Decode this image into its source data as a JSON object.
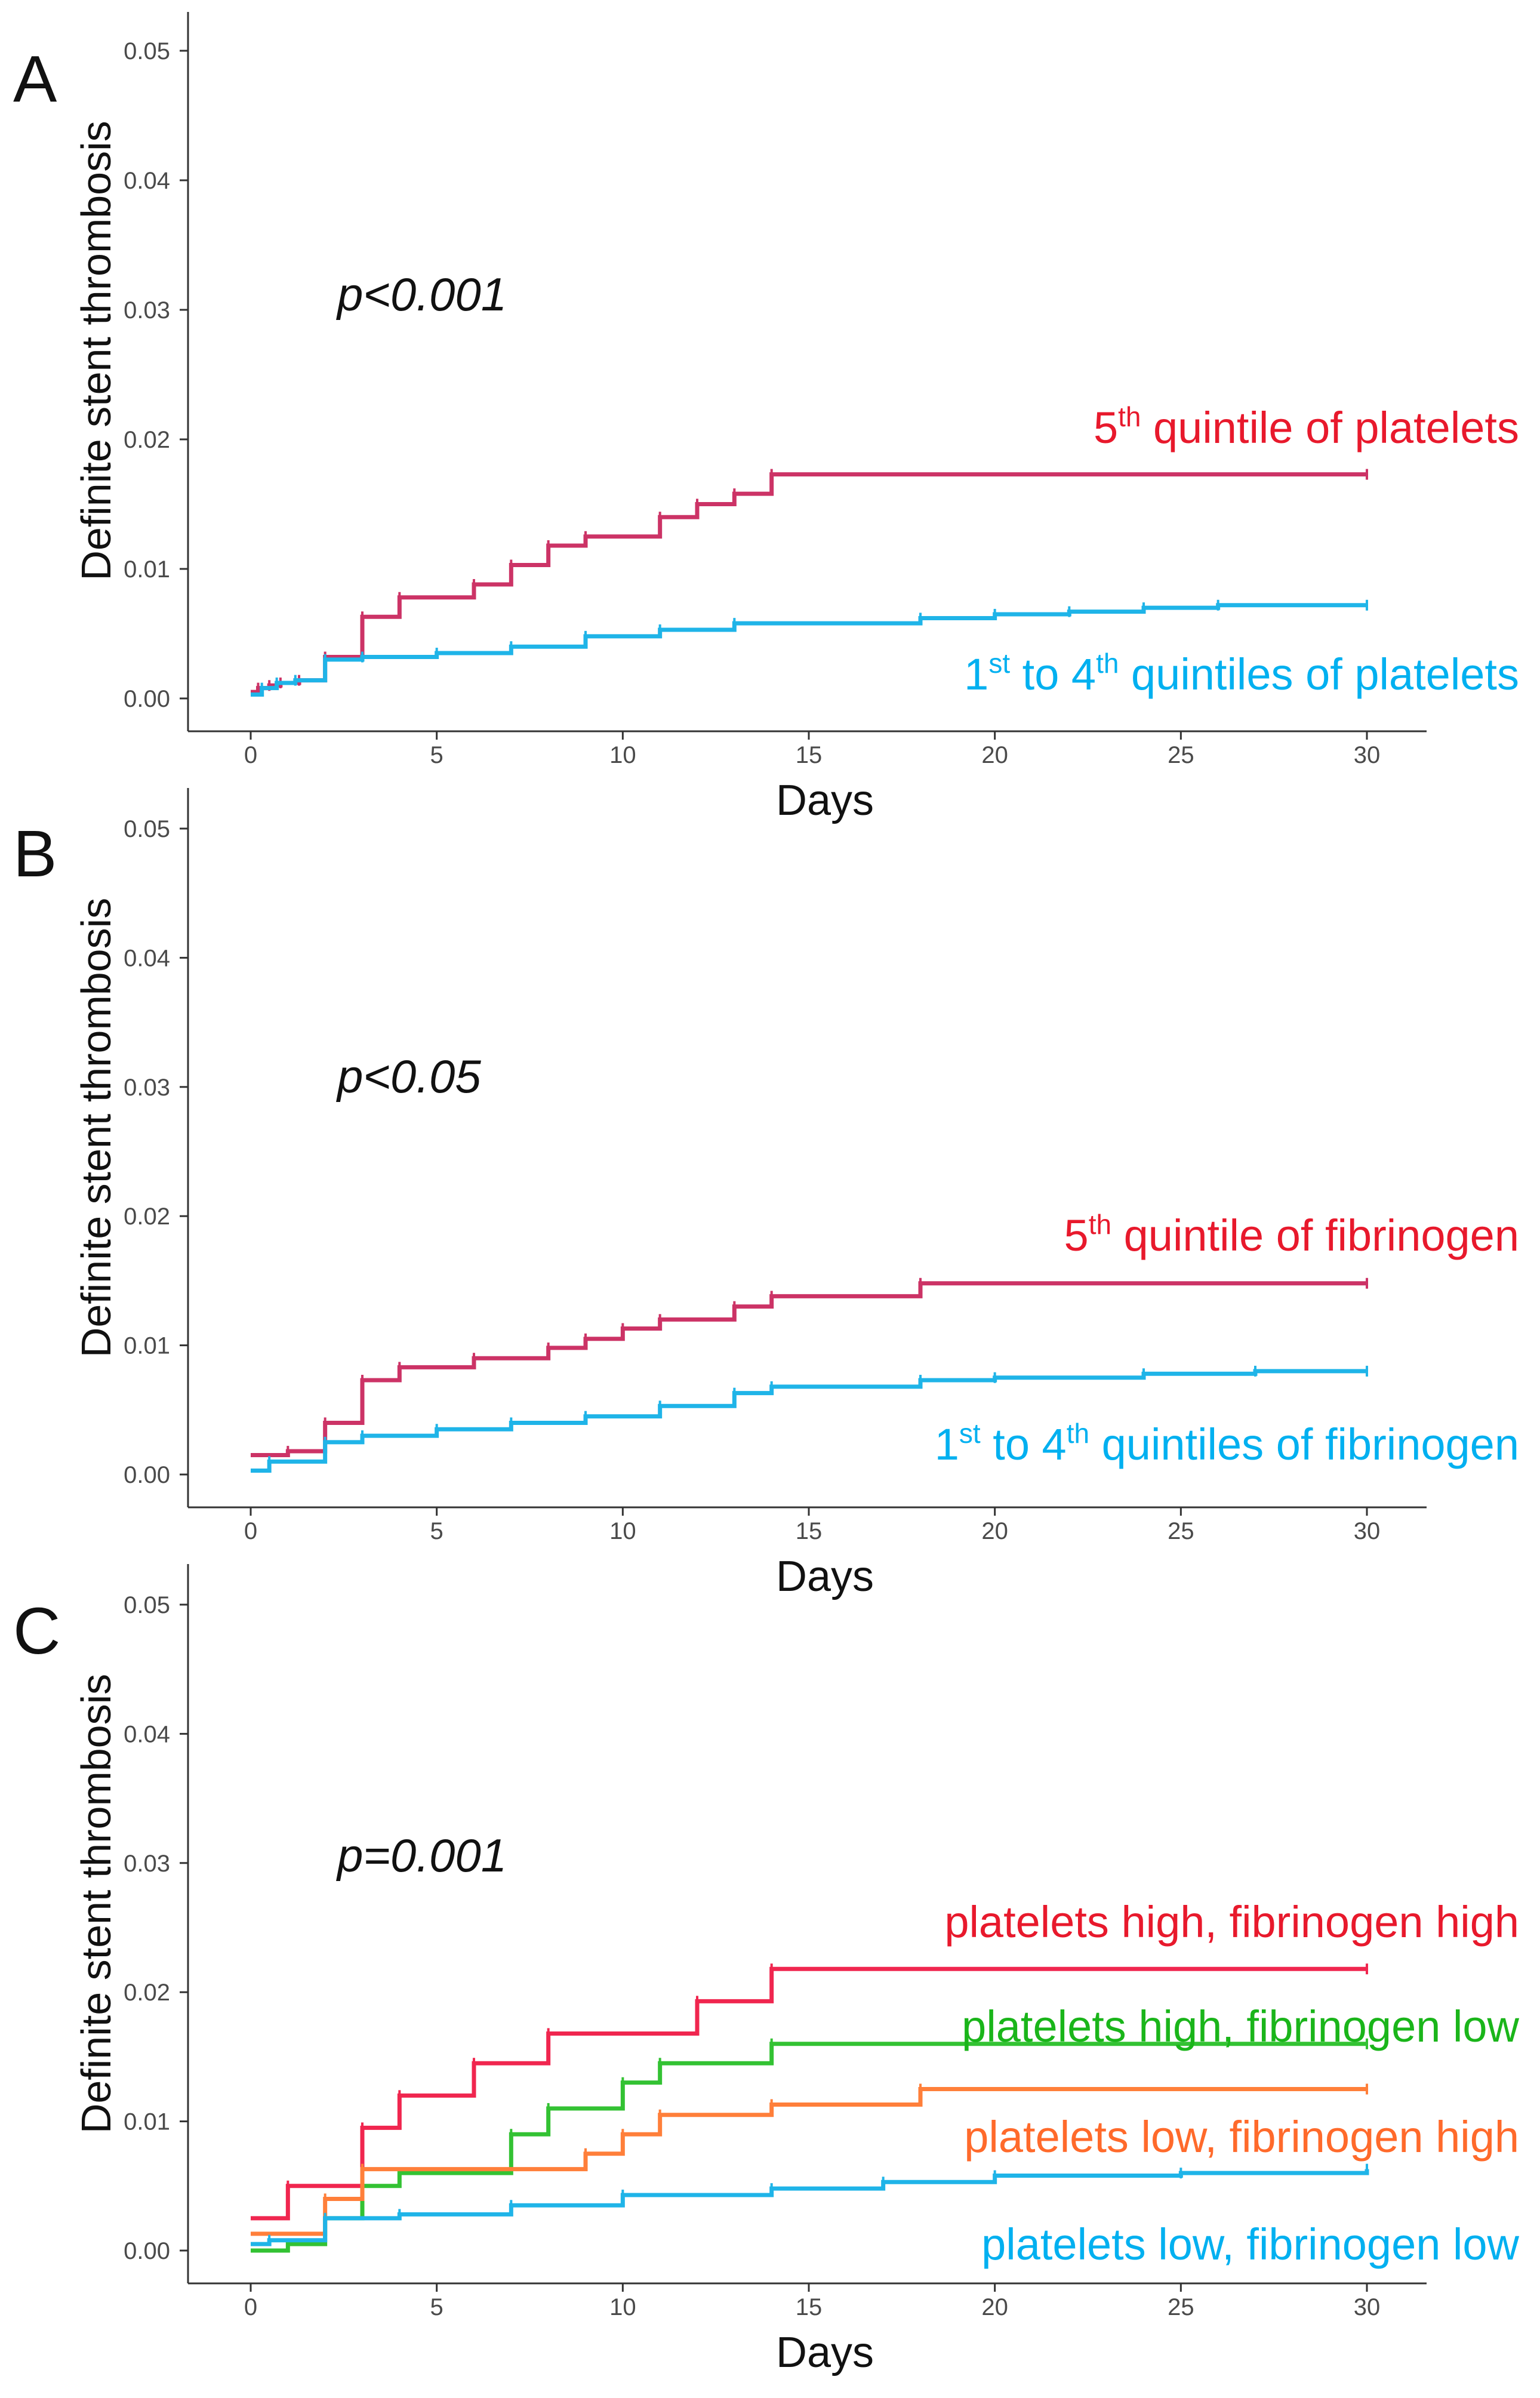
{
  "chart_data": [
    {
      "type": "line",
      "panel_label": "A",
      "p_value": "p<0.001",
      "xlabel": "Days",
      "ylabel": "Definite stent thrombosis",
      "xlim": [
        0,
        30
      ],
      "ylim": [
        0,
        0.05
      ],
      "xticks": [
        0,
        5,
        10,
        15,
        20,
        25,
        30
      ],
      "yticks": [
        "0.00",
        "0.01",
        "0.02",
        "0.03",
        "0.04",
        "0.05"
      ],
      "grid": false,
      "legend": "inline labels at right end of curves",
      "series": [
        {
          "name_parts": [
            "5",
            "th",
            " quintile of platelets"
          ],
          "color": "#cc3366",
          "label_color": "#e8192c",
          "steps": [
            [
              0,
              0.0005
            ],
            [
              0.2,
              0.0008
            ],
            [
              0.5,
              0.001
            ],
            [
              0.8,
              0.0012
            ],
            [
              1.3,
              0.0014
            ],
            [
              2,
              0.0032
            ],
            [
              3,
              0.0063
            ],
            [
              4,
              0.0078
            ],
            [
              6,
              0.0088
            ],
            [
              7,
              0.0103
            ],
            [
              8,
              0.0118
            ],
            [
              9,
              0.0125
            ],
            [
              11,
              0.014
            ],
            [
              12,
              0.015
            ],
            [
              13,
              0.0158
            ],
            [
              14,
              0.0173
            ],
            [
              30,
              0.0173
            ]
          ]
        },
        {
          "name_parts": [
            "1",
            "st",
            " to 4",
            "th",
            " quintiles of platelets"
          ],
          "color": "#1fb4e8",
          "label_color": "#00b0f0",
          "steps": [
            [
              0,
              0.0003
            ],
            [
              0.3,
              0.0008
            ],
            [
              0.7,
              0.0012
            ],
            [
              1.2,
              0.0014
            ],
            [
              2,
              0.003
            ],
            [
              3,
              0.0032
            ],
            [
              5,
              0.0035
            ],
            [
              7,
              0.004
            ],
            [
              9,
              0.0048
            ],
            [
              11,
              0.0053
            ],
            [
              13,
              0.0058
            ],
            [
              18,
              0.0062
            ],
            [
              20,
              0.0065
            ],
            [
              22,
              0.0067
            ],
            [
              24,
              0.007
            ],
            [
              26,
              0.0072
            ],
            [
              30,
              0.0072
            ]
          ]
        }
      ]
    },
    {
      "type": "line",
      "panel_label": "B",
      "p_value": "p<0.05",
      "xlabel": "Days",
      "ylabel": "Definite stent thrombosis",
      "xlim": [
        0,
        30
      ],
      "ylim": [
        0,
        0.05
      ],
      "xticks": [
        0,
        5,
        10,
        15,
        20,
        25,
        30
      ],
      "yticks": [
        "0.00",
        "0.01",
        "0.02",
        "0.03",
        "0.04",
        "0.05"
      ],
      "grid": false,
      "legend": "inline labels at right end of curves",
      "series": [
        {
          "name_parts": [
            "5",
            "th",
            " quintile of fibrinogen"
          ],
          "color": "#cc3366",
          "label_color": "#e8192c",
          "steps": [
            [
              0,
              0.0015
            ],
            [
              1,
              0.0018
            ],
            [
              2,
              0.004
            ],
            [
              3,
              0.0073
            ],
            [
              4,
              0.0083
            ],
            [
              6,
              0.009
            ],
            [
              8,
              0.0098
            ],
            [
              9,
              0.0105
            ],
            [
              10,
              0.0113
            ],
            [
              11,
              0.012
            ],
            [
              13,
              0.013
            ],
            [
              14,
              0.0138
            ],
            [
              18,
              0.0148
            ],
            [
              30,
              0.0148
            ]
          ]
        },
        {
          "name_parts": [
            "1",
            "st",
            " to 4",
            "th",
            " quintiles of fibrinogen"
          ],
          "color": "#1fb4e8",
          "label_color": "#00b0f0",
          "steps": [
            [
              0,
              0.0003
            ],
            [
              0.5,
              0.001
            ],
            [
              2,
              0.0025
            ],
            [
              3,
              0.003
            ],
            [
              5,
              0.0035
            ],
            [
              7,
              0.004
            ],
            [
              9,
              0.0045
            ],
            [
              11,
              0.0053
            ],
            [
              13,
              0.0063
            ],
            [
              14,
              0.0068
            ],
            [
              18,
              0.0073
            ],
            [
              20,
              0.0075
            ],
            [
              24,
              0.0078
            ],
            [
              27,
              0.008
            ],
            [
              30,
              0.008
            ]
          ]
        }
      ]
    },
    {
      "type": "line",
      "panel_label": "C",
      "p_value": "p=0.001",
      "xlabel": "Days",
      "ylabel": "Definite stent thrombosis",
      "xlim": [
        0,
        30
      ],
      "ylim": [
        0,
        0.05
      ],
      "xticks": [
        0,
        5,
        10,
        15,
        20,
        25,
        30
      ],
      "yticks": [
        "0.00",
        "0.01",
        "0.02",
        "0.03",
        "0.04",
        "0.05"
      ],
      "grid": false,
      "legend": "inline labels at right end of curves",
      "series": [
        {
          "name_parts": [
            "platelets high, fibrinogen high"
          ],
          "color": "#f0264f",
          "label_color": "#e8192c",
          "steps": [
            [
              0,
              0.0025
            ],
            [
              1,
              0.005
            ],
            [
              3,
              0.0095
            ],
            [
              4,
              0.012
            ],
            [
              6,
              0.0145
            ],
            [
              8,
              0.0168
            ],
            [
              12,
              0.0193
            ],
            [
              14,
              0.0218
            ],
            [
              30,
              0.0218
            ]
          ]
        },
        {
          "name_parts": [
            "platelets high, fibrinogen low"
          ],
          "color": "#33c233",
          "label_color": "#1ab51a",
          "steps": [
            [
              0,
              0.0
            ],
            [
              1,
              0.0005
            ],
            [
              2,
              0.0025
            ],
            [
              3,
              0.005
            ],
            [
              4,
              0.006
            ],
            [
              7,
              0.009
            ],
            [
              8,
              0.011
            ],
            [
              10,
              0.013
            ],
            [
              11,
              0.0145
            ],
            [
              14,
              0.016
            ],
            [
              30,
              0.016
            ]
          ]
        },
        {
          "name_parts": [
            "platelets low, fibrinogen high"
          ],
          "color": "#ff7f3a",
          "label_color": "#ff6a2b",
          "steps": [
            [
              0,
              0.0013
            ],
            [
              2,
              0.004
            ],
            [
              3,
              0.0063
            ],
            [
              9,
              0.0075
            ],
            [
              10,
              0.009
            ],
            [
              11,
              0.0105
            ],
            [
              14,
              0.0113
            ],
            [
              18,
              0.0125
            ],
            [
              30,
              0.0125
            ]
          ]
        },
        {
          "name_parts": [
            "platelets low, fibrinogen low"
          ],
          "color": "#1fb4e8",
          "label_color": "#00b0f0",
          "steps": [
            [
              0,
              0.0005
            ],
            [
              0.5,
              0.0008
            ],
            [
              2,
              0.0025
            ],
            [
              4,
              0.0028
            ],
            [
              7,
              0.0035
            ],
            [
              10,
              0.0043
            ],
            [
              14,
              0.0048
            ],
            [
              17,
              0.0053
            ],
            [
              20,
              0.0058
            ],
            [
              25,
              0.006
            ],
            [
              30,
              0.0063
            ]
          ]
        }
      ]
    }
  ]
}
